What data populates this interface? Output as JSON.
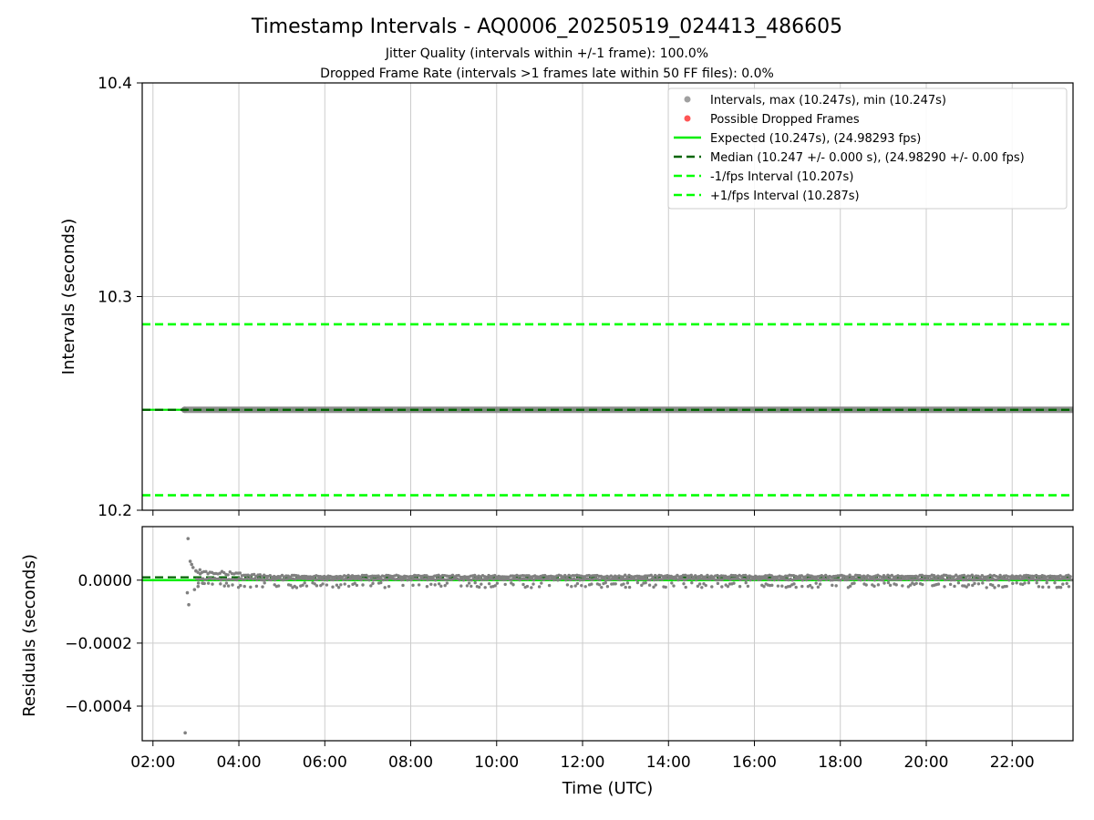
{
  "figure": {
    "title": "Timestamp Intervals - AQ0006_20250519_024413_486605",
    "subtitle_1": "Jitter Quality (intervals within +/-1 frame): 100.0%",
    "subtitle_2": "Dropped Frame Rate (intervals >1 frames late within 50 FF files): 0.0%"
  },
  "colors": {
    "intervals": "#808080",
    "dropped": "#ff4444",
    "expected": "#00ee00",
    "median": "#006400",
    "fps_bounds": "#00ff00",
    "grid": "#cccccc"
  },
  "chart_data": [
    {
      "type": "scatter",
      "xlabel": "",
      "ylabel": "Intervals (seconds)",
      "xlim": [
        "01:45",
        "23:25"
      ],
      "ylim": [
        10.2,
        10.4
      ],
      "yticks": [
        "10.2",
        "10.3",
        "10.4"
      ],
      "grid": true,
      "legend_position": "top-right",
      "legend": [
        {
          "label": "Intervals, max (10.247s), min (10.247s)",
          "kind": "marker",
          "color": "#a0a0a0"
        },
        {
          "label": "Possible Dropped Frames",
          "kind": "marker",
          "color": "#ff5555"
        },
        {
          "label": "Expected (10.247s), (24.98293 fps)",
          "kind": "line",
          "color": "#00ee00"
        },
        {
          "label": "Median (10.247 +/- 0.000 s), (24.98290 +/- 0.00 fps)",
          "kind": "dashed",
          "color": "#006400"
        },
        {
          "label": "-1/fps Interval (10.207s)",
          "kind": "dashed",
          "color": "#00ff00"
        },
        {
          "label": "+1/fps Interval (10.287s)",
          "kind": "dashed",
          "color": "#00ff00"
        }
      ],
      "series": [
        {
          "name": "Intervals, max (10.247s), min (10.247s)",
          "x_range": [
            "02:44",
            "23:25"
          ],
          "y": 10.247
        },
        {
          "name": "Expected (10.247s), (24.98293 fps)",
          "y": 10.247
        },
        {
          "name": "Median (10.247 +/- 0.000 s), (24.98290 +/- 0.00 fps)",
          "y": 10.247
        },
        {
          "name": "-1/fps Interval (10.207s)",
          "y": 10.207
        },
        {
          "name": "+1/fps Interval (10.287s)",
          "y": 10.287
        }
      ]
    },
    {
      "type": "scatter",
      "xlabel": "Time (UTC)",
      "ylabel": "Residuals (seconds)",
      "xlim": [
        "01:45",
        "23:25"
      ],
      "ylim": [
        -0.00051,
        0.00017
      ],
      "yticks": [
        "−0.0004",
        "−0.0002",
        "0.0000"
      ],
      "xticks": [
        "02:00",
        "04:00",
        "06:00",
        "08:00",
        "10:00",
        "12:00",
        "14:00",
        "16:00",
        "18:00",
        "20:00",
        "22:00"
      ],
      "grid": true,
      "series": [
        {
          "name": "residuals",
          "points": [
            [
              "02:45",
              -0.000485
            ],
            [
              "02:49",
              0.000132
            ],
            [
              "02:50",
              -7.8e-05
            ],
            [
              "02:48",
              -4e-05
            ],
            [
              "02:52",
              6e-05
            ],
            [
              "02:54",
              5e-05
            ],
            [
              "02:56",
              4e-05
            ],
            [
              "02:58",
              -3e-05
            ],
            [
              "03:00",
              3e-05
            ],
            [
              "03:03",
              -2e-05
            ],
            [
              "03:06",
              2e-05
            ],
            [
              "03:10",
              -1e-05
            ]
          ]
        },
        {
          "name": "Median",
          "y": 9e-06
        },
        {
          "name": "Expected",
          "y": 0.0
        }
      ]
    }
  ]
}
